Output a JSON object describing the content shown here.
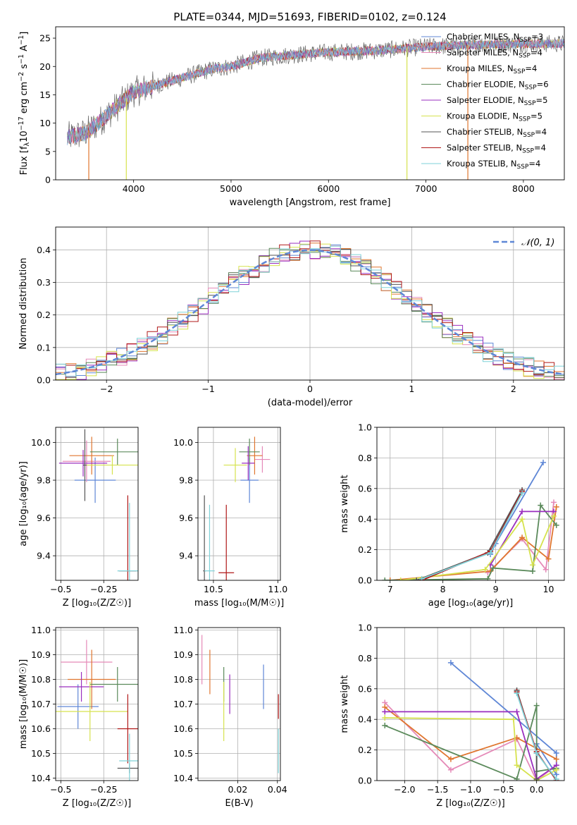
{
  "figure": {
    "title": "PLATE=0344, MJD=51693, FIBERID=0102, z=0.124"
  },
  "colors": {
    "blue": "#5f87d6",
    "pink": "#e58ab8",
    "orange": "#e0762f",
    "green": "#5b8a5b",
    "purple": "#9a2fbf",
    "yellow": "#d6e24e",
    "gray": "#555555",
    "red": "#b01818",
    "cyan": "#7fd2d8"
  },
  "chart_data": [
    {
      "id": "spectrum",
      "type": "line",
      "title": "PLATE=0344, MJD=51693, FIBERID=0102, z=0.124",
      "xlabel": "wavelength [Angstrom, rest frame]",
      "ylabel_parts": [
        "Flux [f",
        "λ",
        "10",
        "−17",
        " erg cm",
        "−2",
        " s",
        "−1",
        " A",
        "−1",
        "]"
      ],
      "xlim": [
        3200,
        8420
      ],
      "ylim": [
        0,
        27
      ],
      "xticks": [
        4000,
        5000,
        6000,
        7000,
        8000
      ],
      "yticks": [
        0,
        5,
        10,
        15,
        20,
        25
      ],
      "grid": false,
      "legend_position": "top-right",
      "series": [
        {
          "name": "Chabrier MILES, N",
          "n_ssp": 3,
          "color": "blue"
        },
        {
          "name": "Salpeter MILES, N",
          "n_ssp": 4,
          "color": "pink"
        },
        {
          "name": "Kroupa MILES, N",
          "n_ssp": 4,
          "color": "orange"
        },
        {
          "name": "Chabrier ELODIE, N",
          "n_ssp": 6,
          "color": "green"
        },
        {
          "name": "Salpeter ELODIE, N",
          "n_ssp": 5,
          "color": "purple"
        },
        {
          "name": "Kroupa ELODIE, N",
          "n_ssp": 5,
          "color": "yellow"
        },
        {
          "name": "Chabrier STELIB, N",
          "n_ssp": 4,
          "color": "gray"
        },
        {
          "name": "Salpeter STELIB, N",
          "n_ssp": 4,
          "color": "red"
        },
        {
          "name": "Kroupa STELIB, N",
          "n_ssp": 4,
          "color": "cyan"
        }
      ],
      "legend_sub": "SSP",
      "continuum": [
        [
          3320,
          7.5
        ],
        [
          3500,
          8.2
        ],
        [
          3600,
          9.5
        ],
        [
          3800,
          12.5
        ],
        [
          4000,
          15.5
        ],
        [
          4200,
          16.5
        ],
        [
          4500,
          18.0
        ],
        [
          4800,
          19.5
        ],
        [
          5000,
          20.0
        ],
        [
          5300,
          21.5
        ],
        [
          5600,
          22.0
        ],
        [
          6000,
          22.5
        ],
        [
          6500,
          22.8
        ],
        [
          7000,
          23.5
        ],
        [
          7500,
          23.8
        ],
        [
          8000,
          24.0
        ],
        [
          8420,
          24.0
        ]
      ],
      "dips": [
        {
          "x": 3540,
          "y": 0,
          "color": "orange"
        },
        {
          "x": 3925,
          "y": 0,
          "color": "yellow"
        },
        {
          "x": 6805,
          "y": 0,
          "color": "yellow"
        },
        {
          "x": 7430,
          "y": 0,
          "color": "orange"
        }
      ]
    },
    {
      "id": "residuals",
      "type": "histogram",
      "xlabel": "(data-model)/error",
      "ylabel": "Normed distribution",
      "xlim": [
        -2.5,
        2.5
      ],
      "ylim": [
        0,
        0.47
      ],
      "xticks": [
        -2,
        -1,
        0,
        1,
        2
      ],
      "yticks": [
        0.0,
        0.1,
        0.2,
        0.3,
        0.4
      ],
      "grid": true,
      "legend_position": "top-right",
      "gaussian_label": "𝒩(0, 1)",
      "gaussian": {
        "mean": 0,
        "sigma": 1,
        "color": "blue"
      },
      "bin_width": 0.1
    },
    {
      "id": "age_vs_Z",
      "type": "errorbar",
      "xlabel": "Z [log₁₀(Z/Z☉)]",
      "ylabel": "age  [log₁₀(age/yr)]",
      "xlim": [
        -0.53,
        -0.05
      ],
      "ylim": [
        9.27,
        10.08
      ],
      "xticks": [
        -0.5,
        -0.25
      ],
      "yticks": [
        9.4,
        9.6,
        9.8,
        10.0
      ],
      "grid": true,
      "points": [
        {
          "color": "blue",
          "x": -0.3,
          "xerr": 0.12,
          "y": 9.8,
          "yerr": 0.12
        },
        {
          "color": "pink",
          "x": -0.35,
          "xerr": 0.14,
          "y": 9.9,
          "yerr": 0.11
        },
        {
          "color": "orange",
          "x": -0.32,
          "xerr": 0.13,
          "y": 9.93,
          "yerr": 0.1
        },
        {
          "color": "green",
          "x": -0.17,
          "xerr": 0.16,
          "y": 9.95,
          "yerr": 0.07
        },
        {
          "color": "purple",
          "x": -0.37,
          "xerr": 0.14,
          "y": 9.89,
          "yerr": 0.07
        },
        {
          "color": "yellow",
          "x": -0.2,
          "xerr": 0.15,
          "y": 9.88,
          "yerr": 0.05
        },
        {
          "color": "gray",
          "x": -0.36,
          "xerr": 0.01,
          "y": 9.88,
          "yerr": 0.19
        },
        {
          "color": "red",
          "x": -0.11,
          "xerr": 0.05,
          "y": 9.32,
          "yerr": 0.4
        },
        {
          "color": "cyan",
          "x": -0.1,
          "xerr": 0.07,
          "y": 9.32,
          "yerr": 0.36
        }
      ]
    },
    {
      "id": "age_vs_mass",
      "type": "errorbar",
      "xlabel": "mass [log₁₀(M/M☉)]",
      "xlim": [
        10.38,
        11.02
      ],
      "ylim": [
        9.27,
        10.08
      ],
      "xticks": [
        10.5,
        11.0
      ],
      "xtick_labels": [
        "10.5",
        "11.0"
      ],
      "yticks": [
        9.4,
        9.6,
        9.8,
        10.0
      ],
      "grid": true,
      "points": [
        {
          "color": "blue",
          "x": 10.78,
          "xerr": 0.07,
          "y": 9.8,
          "yerr": 0.12
        },
        {
          "color": "pink",
          "x": 10.88,
          "xerr": 0.06,
          "y": 9.91,
          "yerr": 0.07
        },
        {
          "color": "orange",
          "x": 10.82,
          "xerr": 0.06,
          "y": 9.93,
          "yerr": 0.1
        },
        {
          "color": "green",
          "x": 10.78,
          "xerr": 0.08,
          "y": 9.95,
          "yerr": 0.07
        },
        {
          "color": "purple",
          "x": 10.77,
          "xerr": 0.05,
          "y": 9.89,
          "yerr": 0.09
        },
        {
          "color": "yellow",
          "x": 10.67,
          "xerr": 0.09,
          "y": 9.88,
          "yerr": 0.09
        },
        {
          "color": "gray",
          "x": 10.43,
          "xerr": 0.01,
          "y": 9.32,
          "yerr": 0.4
        },
        {
          "color": "red",
          "x": 10.6,
          "xerr": 0.06,
          "y": 9.31,
          "yerr": 0.36
        },
        {
          "color": "cyan",
          "x": 10.47,
          "xerr": 0.04,
          "y": 9.32,
          "yerr": 0.35
        }
      ]
    },
    {
      "id": "mass_weight_vs_age",
      "type": "line",
      "xlabel": "age  [log₁₀(age/yr)]",
      "ylabel": "mass weight",
      "xlim": [
        6.75,
        10.3
      ],
      "ylim": [
        0,
        1.0
      ],
      "xticks": [
        7,
        8,
        9,
        10
      ],
      "yticks": [
        0.0,
        0.2,
        0.4,
        0.6,
        0.8,
        1.0
      ],
      "grid": true,
      "series": [
        {
          "color": "blue",
          "points": [
            [
              8.9,
              0.17
            ],
            [
              9.0,
              0.24
            ],
            [
              9.9,
              0.77
            ]
          ]
        },
        {
          "color": "pink",
          "points": [
            [
              8.85,
              0.05
            ],
            [
              9.5,
              0.27
            ],
            [
              9.95,
              0.07
            ],
            [
              10.1,
              0.51
            ]
          ]
        },
        {
          "color": "orange",
          "points": [
            [
              7.0,
              0.0
            ],
            [
              8.9,
              0.06
            ],
            [
              9.5,
              0.28
            ],
            [
              10.0,
              0.14
            ],
            [
              10.15,
              0.48
            ]
          ]
        },
        {
          "color": "green",
          "points": [
            [
              6.9,
              0.0
            ],
            [
              8.85,
              0.01
            ],
            [
              8.95,
              0.08
            ],
            [
              9.7,
              0.06
            ],
            [
              9.85,
              0.49
            ],
            [
              10.15,
              0.36
            ]
          ]
        },
        {
          "color": "purple",
          "points": [
            [
              8.9,
              0.1
            ],
            [
              9.5,
              0.45
            ],
            [
              10.1,
              0.45
            ]
          ]
        },
        {
          "color": "yellow",
          "points": [
            [
              7.2,
              0.0
            ],
            [
              8.8,
              0.07
            ],
            [
              9.5,
              0.4
            ],
            [
              9.7,
              0.1
            ],
            [
              10.1,
              0.42
            ]
          ]
        },
        {
          "color": "gray",
          "points": [
            [
              7.5,
              0.0
            ],
            [
              8.85,
              0.18
            ],
            [
              9.5,
              0.59
            ]
          ]
        },
        {
          "color": "red",
          "points": [
            [
              7.6,
              0.0
            ],
            [
              8.9,
              0.19
            ],
            [
              9.5,
              0.58
            ]
          ]
        },
        {
          "color": "cyan",
          "points": [
            [
              7.6,
              0.01
            ],
            [
              8.9,
              0.18
            ],
            [
              9.5,
              0.57
            ]
          ]
        }
      ]
    },
    {
      "id": "mass_vs_Z",
      "type": "errorbar",
      "xlabel": "Z [log₁₀(Z/Z☉)]",
      "ylabel": "mass [log₁₀(M/M☉)]",
      "xlim": [
        -0.53,
        -0.05
      ],
      "ylim": [
        10.39,
        11.01
      ],
      "xticks": [
        -0.5,
        -0.25
      ],
      "yticks": [
        10.4,
        10.5,
        10.6,
        10.7,
        10.8,
        10.9,
        11.0
      ],
      "grid": true,
      "points": [
        {
          "color": "blue",
          "x": -0.4,
          "xerr": 0.12,
          "y": 10.69,
          "yerr": 0.09
        },
        {
          "color": "pink",
          "x": -0.35,
          "xerr": 0.15,
          "y": 10.87,
          "yerr": 0.09
        },
        {
          "color": "orange",
          "x": -0.32,
          "xerr": 0.14,
          "y": 10.8,
          "yerr": 0.12
        },
        {
          "color": "green",
          "x": -0.17,
          "xerr": 0.16,
          "y": 10.78,
          "yerr": 0.07
        },
        {
          "color": "purple",
          "x": -0.38,
          "xerr": 0.13,
          "y": 10.77,
          "yerr": 0.06
        },
        {
          "color": "yellow",
          "x": -0.33,
          "xerr": 0.22,
          "y": 10.67,
          "yerr": 0.12
        },
        {
          "color": "gray",
          "x": -0.1,
          "xerr": 0.07,
          "y": 10.44,
          "yerr": 0.02
        },
        {
          "color": "red",
          "x": -0.11,
          "xerr": 0.06,
          "y": 10.6,
          "yerr": 0.14
        },
        {
          "color": "cyan",
          "x": -0.1,
          "xerr": 0.06,
          "y": 10.47,
          "yerr": 0.11
        }
      ]
    },
    {
      "id": "mass_vs_ebv",
      "type": "errorbar",
      "xlabel": "E(B-V)",
      "xlim": [
        0.0,
        0.0415
      ],
      "ylim": [
        10.39,
        11.01
      ],
      "xticks": [
        0.02,
        0.04
      ],
      "xtick_labels": [
        "0.02",
        "0.04"
      ],
      "yticks": [
        10.4,
        10.5,
        10.6,
        10.7,
        10.8,
        10.9,
        11.0
      ],
      "grid": true,
      "points": [
        {
          "color": "pink",
          "x": 0.002,
          "xerr": 0,
          "y": 10.88,
          "yerr": 0.1
        },
        {
          "color": "orange",
          "x": 0.006,
          "xerr": 0,
          "y": 10.83,
          "yerr": 0.09
        },
        {
          "color": "green",
          "x": 0.013,
          "xerr": 0,
          "y": 10.78,
          "yerr": 0.07
        },
        {
          "color": "yellow",
          "x": 0.013,
          "xerr": 0,
          "y": 10.67,
          "yerr": 0.12
        },
        {
          "color": "purple",
          "x": 0.016,
          "xerr": 0,
          "y": 10.74,
          "yerr": 0.08
        },
        {
          "color": "blue",
          "x": 0.033,
          "xerr": 0,
          "y": 10.77,
          "yerr": 0.09
        },
        {
          "color": "red",
          "x": 0.0405,
          "xerr": 0,
          "y": 10.69,
          "yerr": 0.05
        },
        {
          "color": "cyan",
          "x": 0.0405,
          "xerr": 0,
          "y": 10.51,
          "yerr": 0.09
        }
      ]
    },
    {
      "id": "mass_weight_vs_Z",
      "type": "line",
      "xlabel": "Z [log₁₀(Z/Z☉)]",
      "ylabel": "mass weight",
      "xlim": [
        -2.42,
        0.42
      ],
      "ylim": [
        0,
        1.0
      ],
      "xticks": [
        -2.0,
        -1.5,
        -1.0,
        -0.5,
        0.0
      ],
      "xtick_labels": [
        "−2.0",
        "−1.5",
        "−1.0",
        "−0.5",
        "0.0"
      ],
      "yticks": [
        0.0,
        0.2,
        0.4,
        0.6,
        0.8,
        1.0
      ],
      "grid": true,
      "series": [
        {
          "color": "blue",
          "points": [
            [
              -1.3,
              0.77
            ],
            [
              0.3,
              0.18
            ],
            [
              0.3,
              0.04
            ],
            [
              0.0,
              0.24
            ]
          ]
        },
        {
          "color": "pink",
          "points": [
            [
              -2.3,
              0.51
            ],
            [
              -1.3,
              0.07
            ],
            [
              -0.3,
              0.27
            ],
            [
              0.0,
              0.0
            ],
            [
              0.3,
              0.1
            ]
          ]
        },
        {
          "color": "orange",
          "points": [
            [
              -2.3,
              0.48
            ],
            [
              -1.3,
              0.14
            ],
            [
              -0.3,
              0.28
            ],
            [
              0.3,
              0.14
            ]
          ]
        },
        {
          "color": "green",
          "points": [
            [
              -2.3,
              0.36
            ],
            [
              -0.3,
              0.01
            ],
            [
              0.0,
              0.49
            ],
            [
              0.0,
              0.06
            ],
            [
              0.3,
              0.08
            ]
          ]
        },
        {
          "color": "purple",
          "points": [
            [
              -2.3,
              0.45
            ],
            [
              -0.3,
              0.45
            ],
            [
              0.0,
              0.01
            ],
            [
              0.3,
              0.1
            ]
          ]
        },
        {
          "color": "yellow",
          "points": [
            [
              -2.3,
              0.41
            ],
            [
              -0.35,
              0.4
            ],
            [
              -0.3,
              0.1
            ],
            [
              0.0,
              0.0
            ],
            [
              0.3,
              0.07
            ]
          ]
        },
        {
          "color": "gray",
          "points": [
            [
              -0.3,
              0.59
            ],
            [
              0.0,
              0.18
            ],
            [
              0.0,
              0.01
            ]
          ]
        },
        {
          "color": "red",
          "points": [
            [
              -0.3,
              0.58
            ],
            [
              0.0,
              0.19
            ],
            [
              0.3,
              0.0
            ]
          ]
        },
        {
          "color": "cyan",
          "points": [
            [
              -0.3,
              0.57
            ],
            [
              0.0,
              0.18
            ],
            [
              0.3,
              0.01
            ]
          ]
        }
      ]
    }
  ]
}
